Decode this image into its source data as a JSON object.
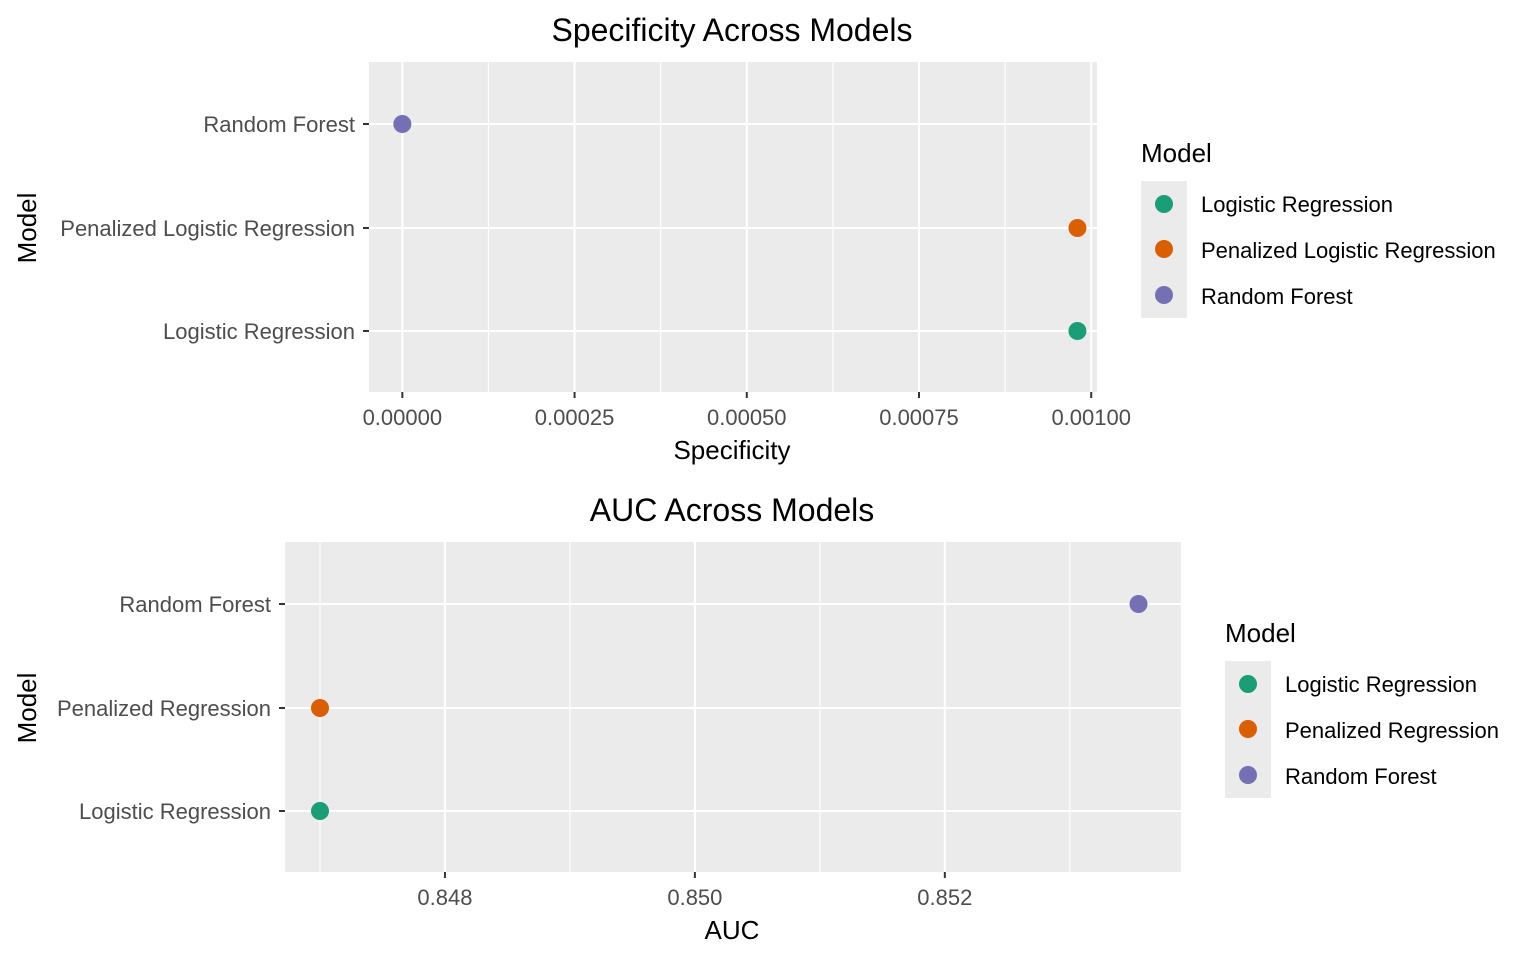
{
  "chart_data": [
    {
      "type": "scatter",
      "title": "Specificity Across Models",
      "xlabel": "Specificity",
      "ylabel": "Model",
      "xlim": [
        -4.84e-05,
        0.0010084
      ],
      "x_ticks": [
        0,
        0.00025,
        0.0005,
        0.00075,
        0.001
      ],
      "x_tick_labels": [
        "0.00000",
        "0.00025",
        "0.00050",
        "0.00075",
        "0.00100"
      ],
      "categories": [
        "Logistic Regression",
        "Penalized Logistic Regression",
        "Random Forest"
      ],
      "series": [
        {
          "name": "Logistic Regression",
          "category": "Logistic Regression",
          "value": 0.00098,
          "color": "#1b9e77"
        },
        {
          "name": "Penalized Logistic Regression",
          "category": "Penalized Logistic Regression",
          "value": 0.00098,
          "color": "#d95f02"
        },
        {
          "name": "Random Forest",
          "category": "Random Forest",
          "value": 0.0,
          "color": "#7570b3"
        }
      ],
      "legend": {
        "title": "Model",
        "position": "right"
      },
      "grid": true
    },
    {
      "type": "scatter",
      "title": "AUC Across Models",
      "xlabel": "AUC",
      "ylabel": "Model",
      "xlim": [
        0.84672,
        0.85389
      ],
      "x_ticks": [
        0.848,
        0.85,
        0.852
      ],
      "x_tick_labels": [
        "0.848",
        "0.850",
        "0.852"
      ],
      "categories": [
        "Logistic Regression",
        "Penalized Regression",
        "Random Forest"
      ],
      "series": [
        {
          "name": "Logistic Regression",
          "category": "Logistic Regression",
          "value": 0.847,
          "color": "#1b9e77"
        },
        {
          "name": "Penalized Regression",
          "category": "Penalized Regression",
          "value": 0.847,
          "color": "#d95f02"
        },
        {
          "name": "Random Forest",
          "category": "Random Forest",
          "value": 0.85355,
          "color": "#7570b3"
        }
      ],
      "legend": {
        "title": "Model",
        "position": "right"
      },
      "grid": true
    }
  ]
}
